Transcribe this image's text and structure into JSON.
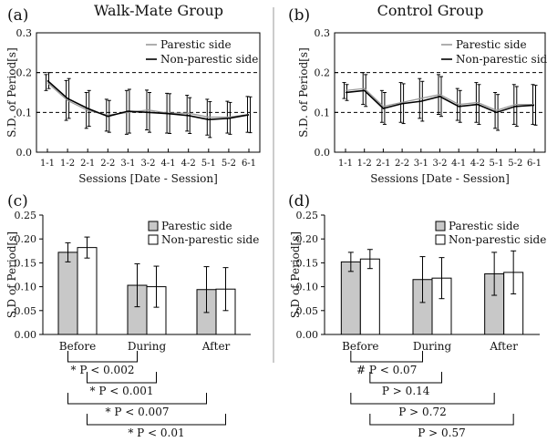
{
  "figure": {
    "panel_labels": [
      "(a)",
      "(b)",
      "(c)",
      "(d)"
    ],
    "group_titles": [
      "Walk-Mate Group",
      "Control Group"
    ]
  },
  "chart_data": [
    {
      "id": "a",
      "type": "line",
      "title": "Walk-Mate Group",
      "xlabel": "Sessions [Date - Session]",
      "ylabel": "S.D. of Period[s]",
      "categories": [
        "1-1",
        "1-2",
        "2-1",
        "2-2",
        "3-1",
        "3-2",
        "4-1",
        "4-2",
        "5-1",
        "5-2",
        "6-1"
      ],
      "ylim": [
        0,
        0.3
      ],
      "yticks": [
        "0.0",
        "0.1",
        "0.2",
        "0.3"
      ],
      "reference_lines": [
        0.1,
        0.2
      ],
      "legend": "top-right",
      "series": [
        {
          "name": "Parestic side",
          "color": "#9a9a9a",
          "values": [
            0.175,
            0.13,
            0.105,
            0.093,
            0.1,
            0.106,
            0.098,
            0.098,
            0.088,
            0.088,
            0.095
          ],
          "error": [
            0.02,
            0.05,
            0.045,
            0.04,
            0.055,
            0.05,
            0.05,
            0.045,
            0.045,
            0.04,
            0.045
          ]
        },
        {
          "name": "Non-parestic side",
          "color": "#000000",
          "values": [
            0.18,
            0.135,
            0.11,
            0.09,
            0.103,
            0.1,
            0.097,
            0.092,
            0.082,
            0.085,
            0.094
          ],
          "error": [
            0.02,
            0.05,
            0.045,
            0.04,
            0.055,
            0.05,
            0.05,
            0.045,
            0.045,
            0.04,
            0.045
          ]
        }
      ]
    },
    {
      "id": "b",
      "type": "line",
      "title": "Control Group",
      "xlabel": "Sessions [Date - Session]",
      "ylabel": "S.D. of Period[s]",
      "categories": [
        "1-1",
        "1-2",
        "2-1",
        "2-2",
        "3-1",
        "3-2",
        "4-1",
        "4-2",
        "5-1",
        "5-2",
        "6-1"
      ],
      "ylim": [
        0,
        0.3
      ],
      "yticks": [
        "0.0",
        "0.1",
        "0.2",
        "0.3"
      ],
      "reference_lines": [
        0.1,
        0.2
      ],
      "legend": "top-right",
      "series": [
        {
          "name": "Parestic side",
          "color": "#9a9a9a",
          "values": [
            0.155,
            0.16,
            0.115,
            0.125,
            0.135,
            0.145,
            0.12,
            0.125,
            0.105,
            0.12,
            0.12
          ],
          "error": [
            0.02,
            0.04,
            0.04,
            0.05,
            0.05,
            0.05,
            0.04,
            0.05,
            0.045,
            0.05,
            0.05
          ]
        },
        {
          "name": "Non-parestic side",
          "color": "#000000",
          "values": [
            0.15,
            0.155,
            0.11,
            0.122,
            0.128,
            0.14,
            0.115,
            0.12,
            0.1,
            0.115,
            0.118
          ],
          "error": [
            0.02,
            0.04,
            0.04,
            0.05,
            0.05,
            0.05,
            0.04,
            0.05,
            0.045,
            0.05,
            0.05
          ]
        }
      ]
    },
    {
      "id": "c",
      "type": "bar",
      "title": "Walk-Mate Group",
      "xlabel": "",
      "ylabel": "S.D of Period[s]",
      "categories": [
        "Before",
        "During",
        "After"
      ],
      "ylim": [
        0,
        0.25
      ],
      "yticks": [
        "0.00",
        "0.05",
        "0.10",
        "0.15",
        "0.20",
        "0.25"
      ],
      "legend": "top-right",
      "series": [
        {
          "name": "Parestic side",
          "color": "#c8c8c8",
          "values": [
            0.172,
            0.103,
            0.094
          ],
          "error": [
            0.02,
            0.045,
            0.048
          ]
        },
        {
          "name": "Non-parestic side",
          "color": "#ffffff",
          "values": [
            0.182,
            0.1,
            0.095
          ],
          "error": [
            0.022,
            0.043,
            0.045
          ]
        }
      ],
      "comparisons": [
        {
          "label": "* P < 0.002",
          "from": "Before",
          "to": "During"
        },
        {
          "label": "* P < 0.001",
          "from": "Before",
          "to": "During"
        },
        {
          "label": "* P < 0.007",
          "from": "Before",
          "to": "After"
        },
        {
          "label": "* P < 0.01",
          "from": "Before",
          "to": "After"
        }
      ]
    },
    {
      "id": "d",
      "type": "bar",
      "title": "Control Group",
      "xlabel": "",
      "ylabel": "S.D of Period[s]",
      "categories": [
        "Before",
        "During",
        "After"
      ],
      "ylim": [
        0,
        0.25
      ],
      "yticks": [
        "0.00",
        "0.05",
        "0.10",
        "0.15",
        "0.20",
        "0.25"
      ],
      "legend": "top-right",
      "series": [
        {
          "name": "Parestic side",
          "color": "#c8c8c8",
          "values": [
            0.152,
            0.115,
            0.127
          ],
          "error": [
            0.02,
            0.048,
            0.045
          ]
        },
        {
          "name": "Non-parestic side",
          "color": "#ffffff",
          "values": [
            0.158,
            0.118,
            0.13
          ],
          "error": [
            0.02,
            0.043,
            0.045
          ]
        }
      ],
      "comparisons": [
        {
          "label": "# P < 0.07",
          "from": "Before",
          "to": "During"
        },
        {
          "label": "P > 0.14",
          "from": "Before",
          "to": "During"
        },
        {
          "label": "P > 0.72",
          "from": "Before",
          "to": "After"
        },
        {
          "label": "P > 0.57",
          "from": "Before",
          "to": "After"
        }
      ]
    }
  ]
}
